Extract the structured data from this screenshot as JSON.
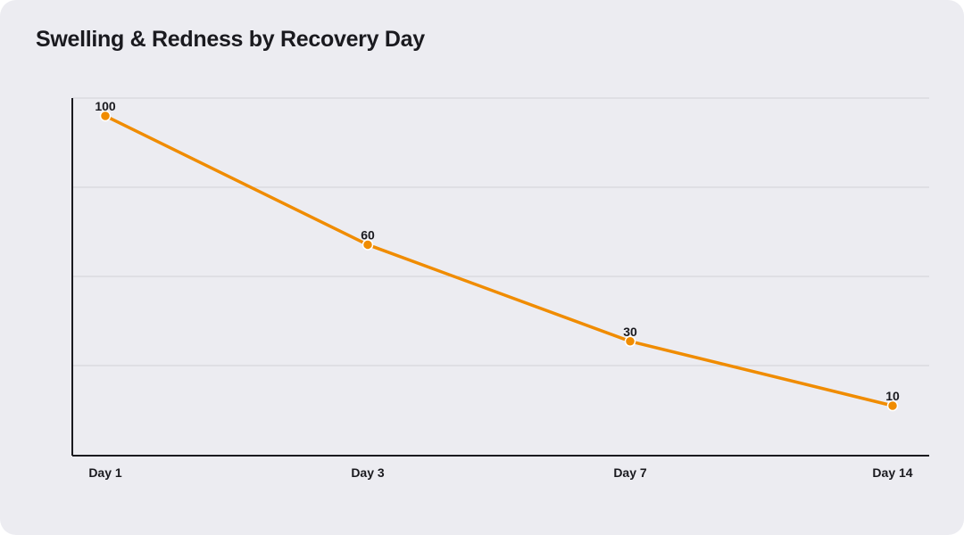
{
  "chart_data": {
    "type": "line",
    "title": "Swelling & Redness by Recovery Day",
    "categories": [
      "Day 1",
      "Day 3",
      "Day 7",
      "Day 14"
    ],
    "series": [
      {
        "values": [
          100,
          60,
          30,
          10
        ]
      }
    ],
    "xlabel": "",
    "ylabel": "",
    "ylim": [
      0,
      105
    ],
    "grid": true,
    "line_color": "#f08c00",
    "marker_color": "#f08c00"
  }
}
